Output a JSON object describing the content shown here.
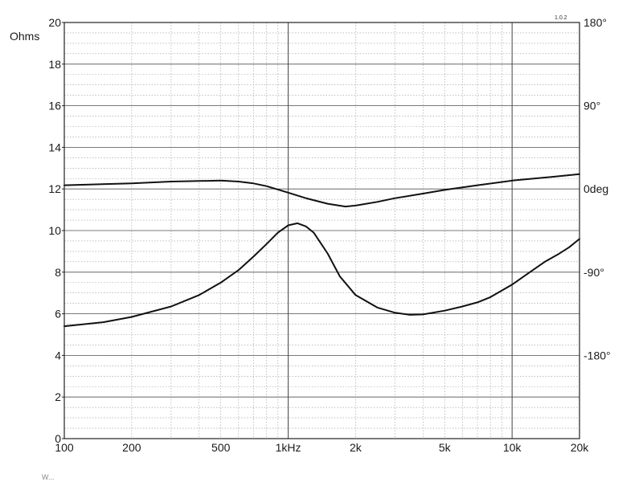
{
  "chart_data": {
    "type": "line",
    "xscale": "log",
    "xlim": [
      100,
      20000
    ],
    "ylim": [
      0,
      20
    ],
    "grid": true,
    "ylabel": "Ohms",
    "corner_mark": "1.0.2",
    "footer_text": "W...",
    "x_ticks": [
      {
        "v": 100,
        "label": "100"
      },
      {
        "v": 200,
        "label": "200"
      },
      {
        "v": 500,
        "label": "500"
      },
      {
        "v": 1000,
        "label": "1kHz"
      },
      {
        "v": 2000,
        "label": "2k"
      },
      {
        "v": 5000,
        "label": "5k"
      },
      {
        "v": 10000,
        "label": "10k"
      },
      {
        "v": 20000,
        "label": "20k"
      }
    ],
    "y_ticks": [
      0,
      2,
      4,
      6,
      8,
      10,
      12,
      14,
      16,
      18,
      20
    ],
    "phase_axis": {
      "range": [
        -270,
        180
      ],
      "ticks": [
        {
          "v": 180,
          "label": "180°"
        },
        {
          "v": 90,
          "label": "90°"
        },
        {
          "v": 0,
          "label": "0deg"
        },
        {
          "v": -90,
          "label": "-90°"
        },
        {
          "v": -180,
          "label": "-180°"
        }
      ]
    },
    "series": [
      {
        "axis": "left",
        "x": [
          100,
          150,
          200,
          300,
          400,
          500,
          600,
          700,
          800,
          900,
          1000,
          1100,
          1200,
          1300,
          1500,
          1700,
          2000,
          2500,
          3000,
          3500,
          4000,
          5000,
          6000,
          7000,
          8000,
          10000,
          12000,
          14000,
          16000,
          18000,
          20000
        ],
        "values": [
          5.4,
          5.6,
          5.85,
          6.35,
          6.9,
          7.5,
          8.1,
          8.75,
          9.35,
          9.9,
          10.25,
          10.35,
          10.2,
          9.9,
          8.9,
          7.8,
          6.9,
          6.3,
          6.05,
          5.95,
          5.97,
          6.15,
          6.35,
          6.55,
          6.8,
          7.4,
          8.0,
          8.5,
          8.85,
          9.2,
          9.6
        ]
      },
      {
        "axis": "right",
        "x": [
          100,
          200,
          300,
          500,
          600,
          700,
          800,
          1000,
          1200,
          1500,
          1800,
          2000,
          2500,
          3000,
          4000,
          5000,
          7000,
          10000,
          15000,
          20000
        ],
        "values": [
          4,
          6,
          8,
          9,
          8,
          6,
          3,
          -4,
          -10,
          -16,
          -19,
          -18,
          -14,
          -10,
          -5,
          -1,
          4,
          9,
          13,
          16
        ]
      }
    ]
  }
}
